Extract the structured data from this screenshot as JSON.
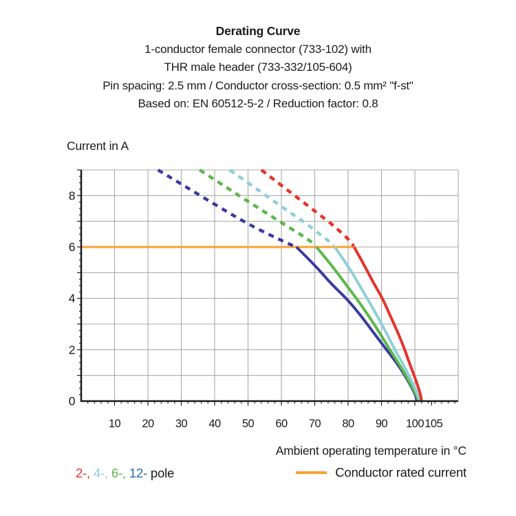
{
  "header": {
    "title": "Derating Curve",
    "subtitle_lines": [
      "1-conductor female connector (733-102) with",
      "THR male header (733-332/105-604)",
      "Pin spacing: 2.5 mm / Conductor cross-section: 0.5 mm² \"f-st\"",
      "Based on: EN 60512-5-2 / Reduction factor: 0.8"
    ]
  },
  "chart_data": {
    "type": "line",
    "title": "Derating Curve",
    "ylabel": "Current in A",
    "xlabel": "Ambient operating temperature in °C",
    "xlim": [
      0,
      113
    ],
    "ylim": [
      0,
      9
    ],
    "x_major_ticks": [
      10,
      20,
      30,
      40,
      50,
      60,
      70,
      80,
      90,
      100,
      105
    ],
    "y_major_ticks": [
      0,
      2,
      4,
      6,
      8
    ],
    "x_gridlines": [
      10,
      20,
      30,
      40,
      50,
      60,
      70,
      80,
      90,
      100,
      113
    ],
    "y_gridlines": [
      1,
      2,
      3,
      4,
      5,
      6,
      7,
      8,
      9
    ],
    "grid": true,
    "grid_color": "#a9a9a9",
    "axis_color": "#1a1a1a",
    "rated_current": {
      "value": 6,
      "x_start": 0,
      "x_end": 81.8,
      "color": "#f7a233",
      "label": "Conductor rated current"
    },
    "series": [
      {
        "name": "12-pole",
        "color": "#3a3a9e",
        "dashed_points": [
          [
            23,
            9
          ],
          [
            30,
            8.45
          ],
          [
            37,
            7.9
          ],
          [
            44,
            7.35
          ],
          [
            50,
            6.9
          ],
          [
            56,
            6.5
          ],
          [
            61,
            6.2
          ],
          [
            64,
            6.02
          ]
        ],
        "solid_points": [
          [
            64.5,
            6
          ],
          [
            70,
            5.3
          ],
          [
            75,
            4.55
          ],
          [
            79.5,
            4
          ],
          [
            84,
            3.3
          ],
          [
            88,
            2.6
          ],
          [
            91.5,
            2.0
          ],
          [
            94.5,
            1.5
          ],
          [
            97,
            1.0
          ],
          [
            99,
            0.55
          ],
          [
            100.3,
            0.2
          ],
          [
            100.7,
            0
          ]
        ]
      },
      {
        "name": "6-pole",
        "color": "#5cb84a",
        "dashed_points": [
          [
            35.5,
            9
          ],
          [
            42,
            8.45
          ],
          [
            48.5,
            7.9
          ],
          [
            54.5,
            7.4
          ],
          [
            60,
            6.95
          ],
          [
            65,
            6.55
          ],
          [
            68.5,
            6.25
          ],
          [
            70.3,
            6.05
          ]
        ],
        "solid_points": [
          [
            70.5,
            6
          ],
          [
            75,
            5.3
          ],
          [
            79,
            4.6
          ],
          [
            82.5,
            4
          ],
          [
            86,
            3.35
          ],
          [
            89.5,
            2.65
          ],
          [
            92.5,
            2.0
          ],
          [
            95,
            1.5
          ],
          [
            97.3,
            1.0
          ],
          [
            99.2,
            0.55
          ],
          [
            100.6,
            0.2
          ],
          [
            101,
            0
          ]
        ]
      },
      {
        "name": "4-pole",
        "color": "#8ed0d8",
        "dashed_points": [
          [
            44.5,
            9
          ],
          [
            50.5,
            8.45
          ],
          [
            56.5,
            7.9
          ],
          [
            62,
            7.4
          ],
          [
            67,
            6.95
          ],
          [
            71.5,
            6.5
          ],
          [
            74.5,
            6.2
          ],
          [
            75.8,
            6.05
          ]
        ],
        "solid_points": [
          [
            76,
            6
          ],
          [
            79.5,
            5.35
          ],
          [
            82.8,
            4.65
          ],
          [
            85.7,
            4
          ],
          [
            88.8,
            3.3
          ],
          [
            91.5,
            2.65
          ],
          [
            94,
            2.0
          ],
          [
            96.2,
            1.5
          ],
          [
            98.2,
            1.0
          ],
          [
            99.9,
            0.55
          ],
          [
            101,
            0.2
          ],
          [
            101.4,
            0
          ]
        ]
      },
      {
        "name": "2-pole",
        "color": "#e6332a",
        "dashed_points": [
          [
            54,
            9
          ],
          [
            60,
            8.4
          ],
          [
            65.5,
            7.85
          ],
          [
            70.5,
            7.35
          ],
          [
            75,
            6.9
          ],
          [
            78.5,
            6.5
          ],
          [
            80.8,
            6.2
          ],
          [
            81.7,
            6.03
          ]
        ],
        "solid_points": [
          [
            81.8,
            6
          ],
          [
            84.8,
            5.3
          ],
          [
            87.6,
            4.6
          ],
          [
            90.3,
            4
          ],
          [
            92.7,
            3.3
          ],
          [
            94.8,
            2.7
          ],
          [
            96.7,
            2.1
          ],
          [
            98.3,
            1.5
          ],
          [
            99.8,
            1.0
          ],
          [
            101,
            0.55
          ],
          [
            101.8,
            0.2
          ],
          [
            102,
            0
          ]
        ]
      }
    ]
  },
  "legend": {
    "pole_items": [
      {
        "label": "2-",
        "color": "#e6332a"
      },
      {
        "label": "4-",
        "color": "#8ed0d8"
      },
      {
        "label": "6-",
        "color": "#5cb84a"
      },
      {
        "label": "12-",
        "color": "#2e66b2"
      }
    ],
    "separator": ", ",
    "suffix": "pole",
    "suffix_color": "#1a1a1a",
    "rated_label": "Conductor rated current",
    "rated_color": "#f7a233"
  }
}
